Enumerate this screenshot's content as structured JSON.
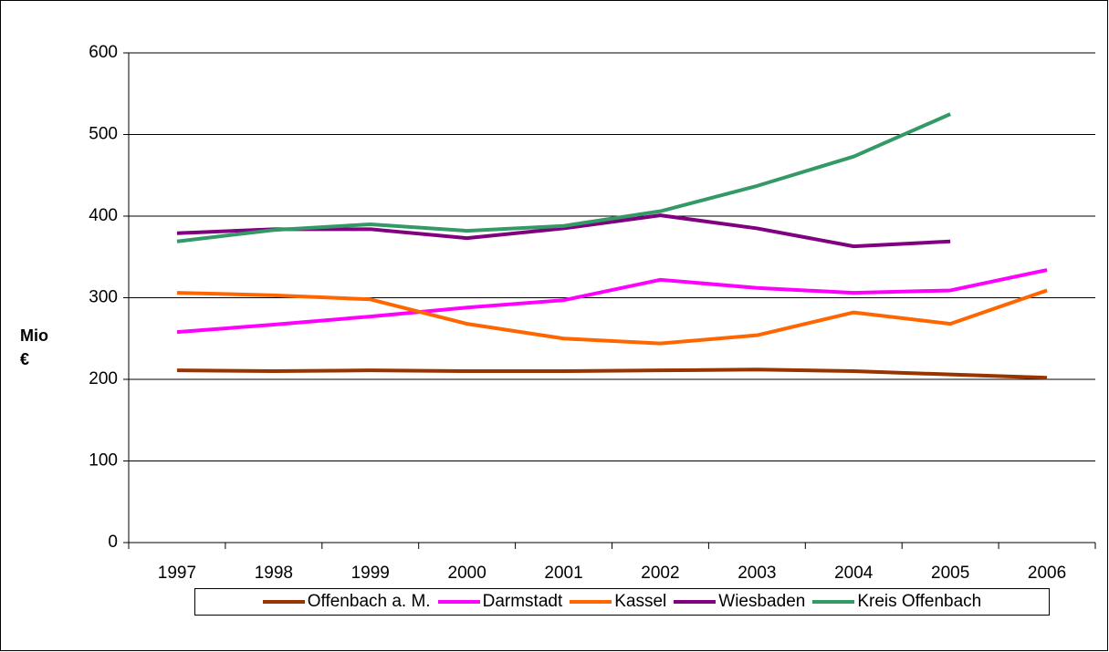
{
  "chart_data": {
    "type": "line",
    "y_label": "Mio €",
    "categories": [
      "1997",
      "1998",
      "1999",
      "2000",
      "2001",
      "2002",
      "2003",
      "2004",
      "2005",
      "2006"
    ],
    "series": [
      {
        "name": "Offenbach a. M.",
        "color": "#993300",
        "values": [
          211,
          210,
          211,
          210,
          210,
          211,
          212,
          210,
          206,
          202
        ]
      },
      {
        "name": "Darmstadt",
        "color": "#FF00FF",
        "values": [
          258,
          267,
          277,
          288,
          297,
          322,
          312,
          306,
          309,
          334
        ]
      },
      {
        "name": "Kassel",
        "color": "#FF6600",
        "values": [
          306,
          303,
          298,
          268,
          250,
          244,
          254,
          282,
          268,
          309
        ]
      },
      {
        "name": "Wiesbaden",
        "color": "#800080",
        "values": [
          379,
          384,
          384,
          373,
          385,
          401,
          385,
          363,
          369,
          null
        ]
      },
      {
        "name": "Kreis Offenbach",
        "color": "#339966",
        "values": [
          369,
          383,
          390,
          382,
          388,
          406,
          437,
          473,
          525,
          null
        ]
      }
    ],
    "ylim": [
      0,
      600
    ],
    "yticks": [
      0,
      100,
      200,
      300,
      400,
      500,
      600
    ],
    "grid": true
  }
}
